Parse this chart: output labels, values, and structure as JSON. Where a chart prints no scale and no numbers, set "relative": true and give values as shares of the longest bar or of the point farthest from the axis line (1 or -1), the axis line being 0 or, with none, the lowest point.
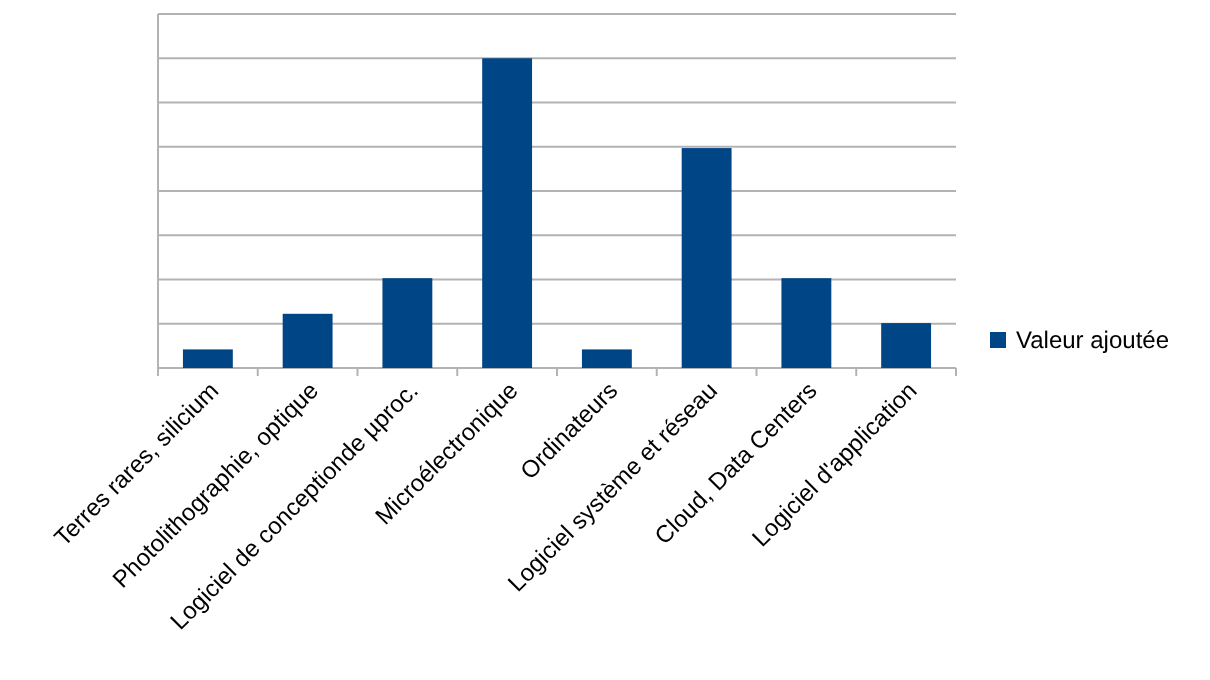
{
  "chart_data": {
    "type": "bar",
    "relative": true,
    "categories": [
      "Terres rares, silicium",
      "Photolithographie, optique",
      "Logiciel de conceptionde µproc.",
      "Microélectronique",
      "Ordinateurs",
      "Logiciel système et réseau",
      "Cloud, Data Centers",
      "Logiciel d'application"
    ],
    "series": [
      {
        "name": "Valeur ajoutée",
        "color": "#004586",
        "values": [
          0.06,
          0.175,
          0.29,
          1,
          0.06,
          0.71,
          0.29,
          0.145
        ]
      }
    ],
    "grid": true,
    "legend": "right"
  }
}
